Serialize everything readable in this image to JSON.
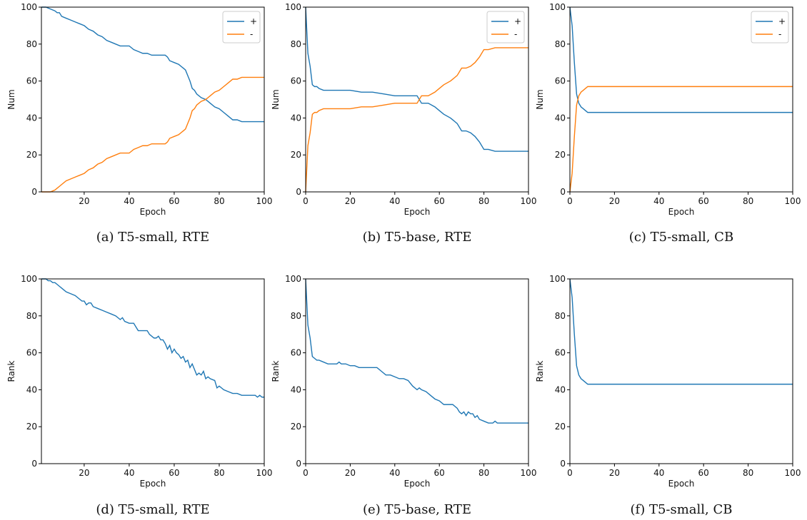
{
  "colors": {
    "plus": "#1f77b4",
    "minus": "#ff7f0e",
    "axis": "#000000"
  },
  "chart_data": [
    {
      "type": "line",
      "caption": "(a) T5-small, RTE",
      "xlabel": "Epoch",
      "ylabel": "Num",
      "xlim": [
        1,
        100
      ],
      "ylim": [
        0,
        100
      ],
      "xticks": [
        20,
        40,
        60,
        80,
        100
      ],
      "yticks": [
        0,
        20,
        40,
        60,
        80,
        100
      ],
      "legend": "top-right",
      "series": [
        {
          "name": "+",
          "color": "plus",
          "x": [
            1,
            3,
            5,
            7,
            8,
            9,
            10,
            12,
            14,
            16,
            18,
            20,
            22,
            24,
            26,
            28,
            30,
            32,
            34,
            36,
            38,
            40,
            42,
            44,
            46,
            48,
            50,
            52,
            54,
            56,
            57,
            58,
            60,
            62,
            63,
            64,
            65,
            66,
            67,
            68,
            69,
            70,
            72,
            74,
            76,
            78,
            80,
            82,
            84,
            86,
            88,
            90,
            92,
            94,
            96,
            98,
            100
          ],
          "y": [
            100,
            100,
            99,
            98,
            97,
            97,
            95,
            94,
            93,
            92,
            91,
            90,
            88,
            87,
            85,
            84,
            82,
            81,
            80,
            79,
            79,
            79,
            77,
            76,
            75,
            75,
            74,
            74,
            74,
            74,
            73,
            71,
            70,
            69,
            68,
            67,
            66,
            63,
            60,
            56,
            55,
            53,
            51,
            50,
            48,
            46,
            45,
            43,
            41,
            39,
            39,
            38,
            38,
            38,
            38,
            38,
            38
          ]
        },
        {
          "name": "-",
          "color": "minus",
          "x": [
            1,
            3,
            5,
            7,
            8,
            9,
            10,
            12,
            14,
            16,
            18,
            20,
            22,
            24,
            26,
            28,
            30,
            32,
            34,
            36,
            38,
            40,
            42,
            44,
            46,
            48,
            50,
            52,
            54,
            56,
            57,
            58,
            60,
            62,
            63,
            64,
            65,
            66,
            67,
            68,
            69,
            70,
            72,
            74,
            76,
            78,
            80,
            82,
            84,
            86,
            88,
            90,
            92,
            94,
            96,
            98,
            100
          ],
          "y": [
            0,
            0,
            0,
            1,
            2,
            3,
            4,
            6,
            7,
            8,
            9,
            10,
            12,
            13,
            15,
            16,
            18,
            19,
            20,
            21,
            21,
            21,
            23,
            24,
            25,
            25,
            26,
            26,
            26,
            26,
            27,
            29,
            30,
            31,
            32,
            33,
            34,
            37,
            40,
            44,
            45,
            47,
            49,
            50,
            52,
            54,
            55,
            57,
            59,
            61,
            61,
            62,
            62,
            62,
            62,
            62,
            62
          ]
        }
      ]
    },
    {
      "type": "line",
      "caption": "(b) T5-base, RTE",
      "xlabel": "Epoch",
      "ylabel": "Num",
      "xlim": [
        0,
        100
      ],
      "ylim": [
        0,
        100
      ],
      "xticks": [
        0,
        20,
        40,
        60,
        80,
        100
      ],
      "yticks": [
        0,
        20,
        40,
        60,
        80,
        100
      ],
      "legend": "top-right",
      "series": [
        {
          "name": "+",
          "color": "plus",
          "x": [
            0,
            1,
            2,
            3,
            4,
            5,
            6,
            8,
            10,
            15,
            20,
            25,
            30,
            35,
            40,
            45,
            50,
            52,
            55,
            58,
            60,
            62,
            65,
            68,
            70,
            72,
            74,
            76,
            78,
            80,
            82,
            85,
            88,
            90,
            95,
            100
          ],
          "y": [
            100,
            75,
            68,
            58,
            57,
            57,
            56,
            55,
            55,
            55,
            55,
            54,
            54,
            53,
            52,
            52,
            52,
            48,
            48,
            46,
            44,
            42,
            40,
            37,
            33,
            33,
            32,
            30,
            27,
            23,
            23,
            22,
            22,
            22,
            22,
            22
          ]
        },
        {
          "name": "-",
          "color": "minus",
          "x": [
            0,
            1,
            2,
            3,
            4,
            5,
            6,
            8,
            10,
            15,
            20,
            25,
            30,
            35,
            40,
            45,
            50,
            52,
            55,
            58,
            60,
            62,
            65,
            68,
            70,
            72,
            74,
            76,
            78,
            80,
            82,
            85,
            88,
            90,
            95,
            100
          ],
          "y": [
            0,
            25,
            32,
            42,
            43,
            43,
            44,
            45,
            45,
            45,
            45,
            46,
            46,
            47,
            48,
            48,
            48,
            52,
            52,
            54,
            56,
            58,
            60,
            63,
            67,
            67,
            68,
            70,
            73,
            77,
            77,
            78,
            78,
            78,
            78,
            78
          ]
        }
      ]
    },
    {
      "type": "line",
      "caption": "(c) T5-small, CB",
      "xlabel": "Epoch",
      "ylabel": "Num",
      "xlim": [
        0,
        100
      ],
      "ylim": [
        0,
        100
      ],
      "xticks": [
        0,
        20,
        40,
        60,
        80,
        100
      ],
      "yticks": [
        0,
        20,
        40,
        60,
        80,
        100
      ],
      "legend": "top-right",
      "series": [
        {
          "name": "+",
          "color": "plus",
          "x": [
            0,
            1,
            2,
            3,
            4,
            5,
            6,
            7,
            8,
            10,
            20,
            40,
            60,
            80,
            100
          ],
          "y": [
            100,
            90,
            70,
            53,
            48,
            46,
            45,
            44,
            43,
            43,
            43,
            43,
            43,
            43,
            43
          ]
        },
        {
          "name": "-",
          "color": "minus",
          "x": [
            0,
            1,
            2,
            3,
            4,
            5,
            6,
            7,
            8,
            10,
            20,
            40,
            60,
            80,
            100
          ],
          "y": [
            0,
            10,
            30,
            47,
            52,
            54,
            55,
            56,
            57,
            57,
            57,
            57,
            57,
            57,
            57
          ]
        }
      ]
    },
    {
      "type": "line",
      "caption": "(d) T5-small, RTE",
      "xlabel": "Epoch",
      "ylabel": "Rank",
      "xlim": [
        1,
        100
      ],
      "ylim": [
        0,
        100
      ],
      "xticks": [
        20,
        40,
        60,
        80,
        100
      ],
      "yticks": [
        0,
        20,
        40,
        60,
        80,
        100
      ],
      "legend": "none",
      "series": [
        {
          "name": "",
          "color": "plus",
          "x": [
            1,
            3,
            4,
            5,
            6,
            7,
            8,
            9,
            10,
            11,
            12,
            14,
            16,
            18,
            19,
            20,
            21,
            22,
            23,
            24,
            26,
            28,
            30,
            32,
            34,
            35,
            36,
            37,
            38,
            40,
            42,
            43,
            44,
            46,
            48,
            49,
            50,
            51,
            52,
            53,
            54,
            55,
            56,
            57,
            58,
            59,
            60,
            61,
            62,
            63,
            64,
            65,
            66,
            67,
            68,
            69,
            70,
            71,
            72,
            73,
            74,
            75,
            76,
            78,
            79,
            80,
            82,
            84,
            86,
            88,
            90,
            92,
            94,
            96,
            97,
            98,
            99,
            100
          ],
          "y": [
            100,
            100,
            99,
            99,
            98,
            98,
            97,
            96,
            95,
            94,
            93,
            92,
            91,
            89,
            88,
            88,
            86,
            87,
            87,
            85,
            84,
            83,
            82,
            81,
            80,
            79,
            78,
            79,
            77,
            76,
            76,
            74,
            72,
            72,
            72,
            70,
            69,
            68,
            68,
            69,
            67,
            67,
            65,
            62,
            64,
            60,
            62,
            60,
            59,
            57,
            58,
            55,
            56,
            52,
            54,
            51,
            48,
            49,
            48,
            50,
            46,
            47,
            46,
            45,
            41,
            42,
            40,
            39,
            38,
            38,
            37,
            37,
            37,
            37,
            36,
            37,
            36,
            36
          ]
        }
      ]
    },
    {
      "type": "line",
      "caption": "(e) T5-base, RTE",
      "xlabel": "Epoch",
      "ylabel": "Rank",
      "xlim": [
        0,
        100
      ],
      "ylim": [
        0,
        100
      ],
      "xticks": [
        0,
        20,
        40,
        60,
        80,
        100
      ],
      "yticks": [
        0,
        20,
        40,
        60,
        80,
        100
      ],
      "legend": "none",
      "series": [
        {
          "name": "",
          "color": "plus",
          "x": [
            0,
            1,
            2,
            3,
            4,
            5,
            6,
            8,
            10,
            12,
            14,
            15,
            16,
            18,
            20,
            22,
            24,
            26,
            28,
            30,
            32,
            34,
            36,
            38,
            40,
            42,
            44,
            46,
            48,
            50,
            51,
            52,
            54,
            56,
            58,
            60,
            62,
            64,
            66,
            68,
            69,
            70,
            71,
            72,
            73,
            74,
            75,
            76,
            77,
            78,
            80,
            82,
            84,
            85,
            86,
            88,
            90,
            95,
            100
          ],
          "y": [
            100,
            75,
            68,
            58,
            57,
            56,
            56,
            55,
            54,
            54,
            54,
            55,
            54,
            54,
            53,
            53,
            52,
            52,
            52,
            52,
            52,
            50,
            48,
            48,
            47,
            46,
            46,
            45,
            42,
            40,
            41,
            40,
            39,
            37,
            35,
            34,
            32,
            32,
            32,
            30,
            28,
            27,
            28,
            26,
            28,
            27,
            27,
            25,
            26,
            24,
            23,
            22,
            22,
            23,
            22,
            22,
            22,
            22,
            22
          ]
        }
      ]
    },
    {
      "type": "line",
      "caption": "(f) T5-small, CB",
      "xlabel": "Epoch",
      "ylabel": "Rank",
      "xlim": [
        0,
        100
      ],
      "ylim": [
        0,
        100
      ],
      "xticks": [
        0,
        20,
        40,
        60,
        80,
        100
      ],
      "yticks": [
        0,
        20,
        40,
        60,
        80,
        100
      ],
      "legend": "none",
      "series": [
        {
          "name": "",
          "color": "plus",
          "x": [
            0,
            1,
            2,
            3,
            4,
            5,
            6,
            7,
            8,
            10,
            20,
            40,
            60,
            80,
            100
          ],
          "y": [
            100,
            90,
            70,
            53,
            48,
            46,
            45,
            44,
            43,
            43,
            43,
            43,
            43,
            43,
            43
          ]
        }
      ]
    }
  ]
}
